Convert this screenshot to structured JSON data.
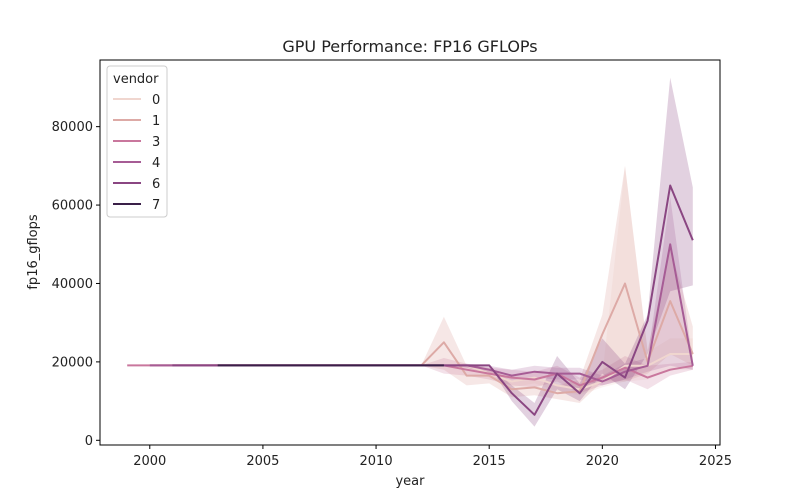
{
  "chart_data": {
    "type": "line",
    "title": "GPU Performance: FP16 GFLOPs",
    "xlabel": "year",
    "ylabel": "fp16_gflops",
    "xlim": [
      1997.8,
      2025.2
    ],
    "ylim": [
      -1200,
      97000
    ],
    "x_ticks": [
      2000,
      2005,
      2010,
      2015,
      2020,
      2025
    ],
    "y_ticks": [
      0,
      20000,
      40000,
      60000,
      80000
    ],
    "grid": false,
    "legend": {
      "title": "vendor",
      "placement": "top-left"
    },
    "series": [
      {
        "name": "0",
        "color": "#f0d6cf",
        "band_opacity": 0.28,
        "points": [
          [
            2001,
            19100
          ],
          [
            2003,
            19100
          ],
          [
            2005,
            19100
          ],
          [
            2008,
            19100
          ],
          [
            2010,
            19100
          ],
          [
            2011,
            19100
          ],
          [
            2012,
            19100
          ],
          [
            2013,
            19100
          ],
          [
            2014,
            19100
          ],
          [
            2015,
            17000
          ],
          [
            2016,
            15000
          ],
          [
            2017,
            16000
          ],
          [
            2018,
            14000
          ],
          [
            2019,
            13000
          ],
          [
            2020,
            15000
          ],
          [
            2021,
            19000
          ],
          [
            2022,
            19000
          ],
          [
            2023,
            22000
          ],
          [
            2024,
            22000
          ]
        ],
        "lower": [
          19100,
          19100,
          19100,
          19100,
          19100,
          19100,
          19100,
          19100,
          19100,
          16000,
          13500,
          14500,
          12500,
          11500,
          13500,
          15000,
          15500,
          18000,
          18000
        ],
        "upper": [
          19100,
          19100,
          19100,
          19100,
          19100,
          19100,
          19100,
          19100,
          19100,
          18000,
          16500,
          17500,
          15500,
          14500,
          16500,
          70000,
          22500,
          26000,
          26000
        ]
      },
      {
        "name": "1",
        "color": "#ddaaa6",
        "band_opacity": 0.28,
        "points": [
          [
            2000,
            19100
          ],
          [
            2002,
            19100
          ],
          [
            2004,
            19100
          ],
          [
            2006,
            19100
          ],
          [
            2008,
            19100
          ],
          [
            2010,
            19100
          ],
          [
            2012,
            19100
          ],
          [
            2013,
            25000
          ],
          [
            2014,
            16500
          ],
          [
            2015,
            16500
          ],
          [
            2016,
            13000
          ],
          [
            2017,
            13500
          ],
          [
            2018,
            12000
          ],
          [
            2019,
            12500
          ],
          [
            2020,
            27000
          ],
          [
            2021,
            40000
          ],
          [
            2022,
            20000
          ],
          [
            2023,
            35500
          ],
          [
            2024,
            22000
          ]
        ],
        "lower": [
          19100,
          19100,
          19100,
          19100,
          19100,
          19100,
          19100,
          18000,
          14000,
          14500,
          11000,
          11500,
          10500,
          9500,
          15000,
          15000,
          17000,
          22000,
          19000
        ],
        "upper": [
          19100,
          19100,
          19100,
          19100,
          19100,
          19100,
          19100,
          31500,
          19000,
          18500,
          15000,
          15500,
          14000,
          15500,
          32000,
          70000,
          23000,
          49000,
          29000
        ]
      },
      {
        "name": "3",
        "color": "#c9779d",
        "band_opacity": 0.22,
        "points": [
          [
            1999,
            19100
          ],
          [
            2001,
            19100
          ],
          [
            2003,
            19100
          ],
          [
            2005,
            19100
          ],
          [
            2008,
            19100
          ],
          [
            2010,
            19100
          ],
          [
            2012,
            19100
          ],
          [
            2013,
            19100
          ],
          [
            2014,
            18000
          ],
          [
            2015,
            17000
          ],
          [
            2016,
            16000
          ],
          [
            2017,
            15500
          ],
          [
            2018,
            17000
          ],
          [
            2019,
            14000
          ],
          [
            2020,
            16000
          ],
          [
            2021,
            18500
          ],
          [
            2022,
            16000
          ],
          [
            2023,
            18000
          ],
          [
            2024,
            19000
          ]
        ],
        "lower": [
          19100,
          19100,
          19100,
          19100,
          19100,
          19100,
          19100,
          17000,
          16500,
          15500,
          14000,
          13500,
          15000,
          12000,
          14000,
          15500,
          13000,
          16500,
          18000
        ],
        "upper": [
          19100,
          19100,
          19100,
          19100,
          19100,
          19100,
          19100,
          21000,
          19500,
          18500,
          18000,
          17500,
          19000,
          16000,
          18000,
          21500,
          19000,
          19500,
          20000
        ]
      },
      {
        "name": "4",
        "color": "#a65c95",
        "band_opacity": 0.22,
        "points": [
          [
            2000,
            19100
          ],
          [
            2002,
            19100
          ],
          [
            2004,
            19100
          ],
          [
            2006,
            19100
          ],
          [
            2008,
            19100
          ],
          [
            2010,
            19100
          ],
          [
            2012,
            19100
          ],
          [
            2013,
            19100
          ],
          [
            2014,
            19100
          ],
          [
            2015,
            18000
          ],
          [
            2016,
            16500
          ],
          [
            2017,
            17500
          ],
          [
            2018,
            17000
          ],
          [
            2019,
            17000
          ],
          [
            2020,
            15000
          ],
          [
            2021,
            17500
          ],
          [
            2022,
            19000
          ],
          [
            2023,
            50000
          ],
          [
            2024,
            19000
          ]
        ],
        "lower": [
          19100,
          19100,
          19100,
          19100,
          19100,
          19100,
          19100,
          19100,
          18500,
          17000,
          15000,
          16000,
          15500,
          15500,
          14000,
          15500,
          17500,
          19000,
          18000
        ],
        "upper": [
          19100,
          19100,
          19100,
          19100,
          19100,
          19100,
          19100,
          19100,
          19500,
          19000,
          18000,
          19000,
          18500,
          18500,
          16500,
          19500,
          21000,
          62000,
          20000
        ]
      },
      {
        "name": "6",
        "color": "#8a4682",
        "band_opacity": 0.25,
        "points": [
          [
            2001,
            19100
          ],
          [
            2003,
            19100
          ],
          [
            2005,
            19100
          ],
          [
            2008,
            19100
          ],
          [
            2010,
            19100
          ],
          [
            2012,
            19100
          ],
          [
            2013,
            19100
          ],
          [
            2014,
            19100
          ],
          [
            2015,
            19100
          ],
          [
            2016,
            12000
          ],
          [
            2017,
            6500
          ],
          [
            2018,
            17000
          ],
          [
            2019,
            12000
          ],
          [
            2020,
            20000
          ],
          [
            2021,
            16000
          ],
          [
            2022,
            30500
          ],
          [
            2023,
            65000
          ],
          [
            2024,
            51000
          ]
        ],
        "lower": [
          19100,
          19100,
          19100,
          19100,
          19100,
          19100,
          19100,
          19100,
          19100,
          10000,
          3500,
          13000,
          10000,
          17000,
          13000,
          22000,
          38000,
          39500
        ],
        "upper": [
          19100,
          19100,
          19100,
          19100,
          19100,
          19100,
          19100,
          19100,
          19100,
          14000,
          9500,
          21500,
          14500,
          26000,
          19500,
          32000,
          92500,
          64500
        ]
      },
      {
        "name": "7",
        "color": "#3a2048",
        "band_opacity": 0.2,
        "points": [
          [
            2003,
            19100
          ],
          [
            2005,
            19100
          ],
          [
            2007,
            19100
          ],
          [
            2009,
            19100
          ],
          [
            2011,
            19100
          ],
          [
            2012,
            19100
          ],
          [
            2013,
            19100
          ]
        ],
        "lower": [
          19100,
          19100,
          19100,
          19100,
          19100,
          19100,
          19100
        ],
        "upper": [
          19100,
          19100,
          19100,
          19100,
          19100,
          19100,
          19100
        ]
      }
    ]
  }
}
